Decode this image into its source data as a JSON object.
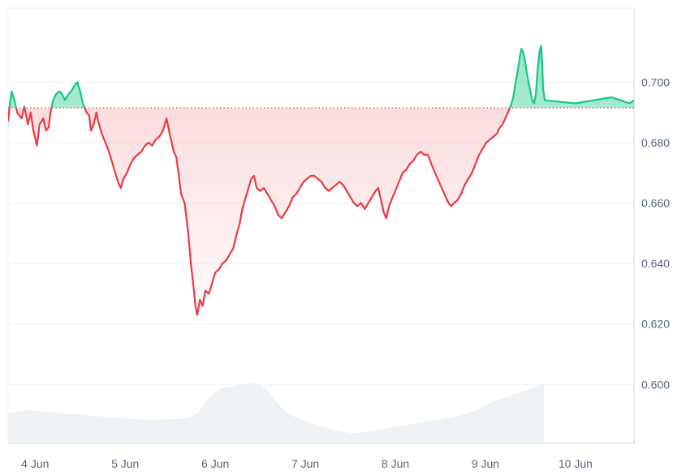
{
  "chart_data": {
    "type": "area",
    "title": "",
    "xlabel": "",
    "ylabel": "",
    "reference_line": 0.6915,
    "ylim": [
      0.5805,
      0.7245
    ],
    "xlim": [
      3.7,
      10.65
    ],
    "grid": true,
    "y_axis_position": "right",
    "colors": {
      "above": "#16c784",
      "below": "#ea3943",
      "above_fill": "#16c784",
      "below_fill": "#ea3943",
      "reference": "#ea3943",
      "volume": "#eff2f5",
      "grid": "#eff2f5",
      "tick_text": "#58667e"
    },
    "y_ticks": [
      {
        "value": 0.6,
        "label": "0.600"
      },
      {
        "value": 0.62,
        "label": "0.620"
      },
      {
        "value": 0.64,
        "label": "0.640"
      },
      {
        "value": 0.66,
        "label": "0.660"
      },
      {
        "value": 0.68,
        "label": "0.680"
      },
      {
        "value": 0.7,
        "label": "0.700"
      }
    ],
    "x_ticks": [
      {
        "value": 4,
        "label": "4 Jun"
      },
      {
        "value": 5,
        "label": "5 Jun"
      },
      {
        "value": 6,
        "label": "6 Jun"
      },
      {
        "value": 7,
        "label": "7 Jun"
      },
      {
        "value": 8,
        "label": "8 Jun"
      },
      {
        "value": 9,
        "label": "9 Jun"
      },
      {
        "value": 10,
        "label": "10 Jun"
      }
    ],
    "price": [
      [
        3.7,
        0.687
      ],
      [
        3.72,
        0.693
      ],
      [
        3.74,
        0.697
      ],
      [
        3.77,
        0.694
      ],
      [
        3.8,
        0.69
      ],
      [
        3.85,
        0.688
      ],
      [
        3.88,
        0.692
      ],
      [
        3.92,
        0.686
      ],
      [
        3.95,
        0.69
      ],
      [
        3.98,
        0.684
      ],
      [
        4.02,
        0.679
      ],
      [
        4.05,
        0.686
      ],
      [
        4.09,
        0.688
      ],
      [
        4.12,
        0.684
      ],
      [
        4.15,
        0.685
      ],
      [
        4.17,
        0.69
      ],
      [
        4.2,
        0.694
      ],
      [
        4.23,
        0.696
      ],
      [
        4.27,
        0.697
      ],
      [
        4.3,
        0.696
      ],
      [
        4.33,
        0.694
      ],
      [
        4.37,
        0.696
      ],
      [
        4.4,
        0.697
      ],
      [
        4.44,
        0.699
      ],
      [
        4.47,
        0.7
      ],
      [
        4.5,
        0.697
      ],
      [
        4.53,
        0.693
      ],
      [
        4.57,
        0.69
      ],
      [
        4.6,
        0.689
      ],
      [
        4.62,
        0.684
      ],
      [
        4.65,
        0.686
      ],
      [
        4.68,
        0.69
      ],
      [
        4.7,
        0.687
      ],
      [
        4.74,
        0.683
      ],
      [
        4.78,
        0.68
      ],
      [
        4.82,
        0.677
      ],
      [
        4.86,
        0.673
      ],
      [
        4.89,
        0.67
      ],
      [
        4.92,
        0.667
      ],
      [
        4.95,
        0.665
      ],
      [
        4.98,
        0.668
      ],
      [
        5.02,
        0.67
      ],
      [
        5.06,
        0.673
      ],
      [
        5.1,
        0.675
      ],
      [
        5.14,
        0.676
      ],
      [
        5.18,
        0.677
      ],
      [
        5.22,
        0.679
      ],
      [
        5.26,
        0.68
      ],
      [
        5.3,
        0.679
      ],
      [
        5.34,
        0.681
      ],
      [
        5.38,
        0.682
      ],
      [
        5.42,
        0.684
      ],
      [
        5.46,
        0.688
      ],
      [
        5.5,
        0.682
      ],
      [
        5.54,
        0.677
      ],
      [
        5.57,
        0.675
      ],
      [
        5.6,
        0.668
      ],
      [
        5.62,
        0.663
      ],
      [
        5.66,
        0.66
      ],
      [
        5.7,
        0.65
      ],
      [
        5.73,
        0.64
      ],
      [
        5.76,
        0.632
      ],
      [
        5.78,
        0.626
      ],
      [
        5.8,
        0.623
      ],
      [
        5.83,
        0.628
      ],
      [
        5.86,
        0.626
      ],
      [
        5.89,
        0.631
      ],
      [
        5.93,
        0.63
      ],
      [
        5.97,
        0.634
      ],
      [
        6.0,
        0.637
      ],
      [
        6.04,
        0.638
      ],
      [
        6.08,
        0.64
      ],
      [
        6.12,
        0.641
      ],
      [
        6.16,
        0.643
      ],
      [
        6.2,
        0.645
      ],
      [
        6.24,
        0.65
      ],
      [
        6.27,
        0.653
      ],
      [
        6.3,
        0.658
      ],
      [
        6.34,
        0.662
      ],
      [
        6.37,
        0.665
      ],
      [
        6.4,
        0.668
      ],
      [
        6.43,
        0.669
      ],
      [
        6.46,
        0.665
      ],
      [
        6.5,
        0.664
      ],
      [
        6.54,
        0.665
      ],
      [
        6.58,
        0.663
      ],
      [
        6.62,
        0.661
      ],
      [
        6.66,
        0.659
      ],
      [
        6.7,
        0.656
      ],
      [
        6.74,
        0.655
      ],
      [
        6.78,
        0.657
      ],
      [
        6.82,
        0.659
      ],
      [
        6.86,
        0.662
      ],
      [
        6.9,
        0.663
      ],
      [
        6.94,
        0.665
      ],
      [
        6.98,
        0.667
      ],
      [
        7.02,
        0.668
      ],
      [
        7.06,
        0.669
      ],
      [
        7.1,
        0.669
      ],
      [
        7.14,
        0.668
      ],
      [
        7.18,
        0.667
      ],
      [
        7.22,
        0.665
      ],
      [
        7.26,
        0.664
      ],
      [
        7.3,
        0.665
      ],
      [
        7.34,
        0.666
      ],
      [
        7.38,
        0.667
      ],
      [
        7.42,
        0.666
      ],
      [
        7.46,
        0.664
      ],
      [
        7.5,
        0.662
      ],
      [
        7.54,
        0.66
      ],
      [
        7.58,
        0.659
      ],
      [
        7.62,
        0.66
      ],
      [
        7.66,
        0.658
      ],
      [
        7.7,
        0.66
      ],
      [
        7.74,
        0.662
      ],
      [
        7.78,
        0.664
      ],
      [
        7.81,
        0.665
      ],
      [
        7.84,
        0.661
      ],
      [
        7.87,
        0.657
      ],
      [
        7.9,
        0.655
      ],
      [
        7.93,
        0.659
      ],
      [
        7.97,
        0.662
      ],
      [
        8.0,
        0.664
      ],
      [
        8.04,
        0.667
      ],
      [
        8.08,
        0.67
      ],
      [
        8.12,
        0.671
      ],
      [
        8.16,
        0.673
      ],
      [
        8.2,
        0.674
      ],
      [
        8.24,
        0.676
      ],
      [
        8.28,
        0.677
      ],
      [
        8.32,
        0.676
      ],
      [
        8.36,
        0.676
      ],
      [
        8.4,
        0.673
      ],
      [
        8.44,
        0.67
      ],
      [
        8.47,
        0.668
      ],
      [
        8.5,
        0.666
      ],
      [
        8.53,
        0.664
      ],
      [
        8.56,
        0.662
      ],
      [
        8.59,
        0.66
      ],
      [
        8.62,
        0.659
      ],
      [
        8.65,
        0.66
      ],
      [
        8.69,
        0.661
      ],
      [
        8.73,
        0.663
      ],
      [
        8.77,
        0.666
      ],
      [
        8.81,
        0.668
      ],
      [
        8.85,
        0.67
      ],
      [
        8.89,
        0.673
      ],
      [
        8.93,
        0.676
      ],
      [
        8.97,
        0.678
      ],
      [
        9.01,
        0.68
      ],
      [
        9.05,
        0.681
      ],
      [
        9.09,
        0.682
      ],
      [
        9.13,
        0.683
      ],
      [
        9.16,
        0.685
      ],
      [
        9.19,
        0.686
      ],
      [
        9.22,
        0.688
      ],
      [
        9.25,
        0.69
      ],
      [
        9.28,
        0.692
      ],
      [
        9.31,
        0.695
      ],
      [
        9.33,
        0.699
      ],
      [
        9.36,
        0.704
      ],
      [
        9.38,
        0.708
      ],
      [
        9.4,
        0.711
      ],
      [
        9.42,
        0.71
      ],
      [
        9.44,
        0.707
      ],
      [
        9.46,
        0.703
      ],
      [
        9.48,
        0.7
      ],
      [
        9.5,
        0.697
      ],
      [
        9.52,
        0.694
      ],
      [
        9.54,
        0.693
      ],
      [
        9.56,
        0.696
      ],
      [
        9.58,
        0.704
      ],
      [
        9.6,
        0.71
      ],
      [
        9.62,
        0.712
      ],
      [
        9.63,
        0.707
      ],
      [
        9.64,
        0.698
      ],
      [
        9.66,
        0.694
      ],
      [
        10.0,
        0.693
      ],
      [
        10.2,
        0.694
      ],
      [
        10.4,
        0.695
      ],
      [
        10.6,
        0.693
      ],
      [
        10.65,
        0.694
      ]
    ],
    "volume": [
      [
        3.7,
        0.08
      ],
      [
        3.9,
        0.081
      ],
      [
        4.1,
        0.0805
      ],
      [
        4.3,
        0.08
      ],
      [
        4.5,
        0.0795
      ],
      [
        4.7,
        0.079
      ],
      [
        4.9,
        0.0785
      ],
      [
        5.1,
        0.078
      ],
      [
        5.3,
        0.0778
      ],
      [
        5.5,
        0.078
      ],
      [
        5.7,
        0.0783
      ],
      [
        5.8,
        0.08
      ],
      [
        5.9,
        0.084
      ],
      [
        6.0,
        0.087
      ],
      [
        6.1,
        0.0885
      ],
      [
        6.2,
        0.089
      ],
      [
        6.3,
        0.0895
      ],
      [
        6.4,
        0.09
      ],
      [
        6.5,
        0.0895
      ],
      [
        6.6,
        0.087
      ],
      [
        6.7,
        0.083
      ],
      [
        6.8,
        0.08
      ],
      [
        6.9,
        0.0785
      ],
      [
        7.0,
        0.0775
      ],
      [
        7.1,
        0.0765
      ],
      [
        7.2,
        0.0755
      ],
      [
        7.3,
        0.0745
      ],
      [
        7.4,
        0.074
      ],
      [
        7.5,
        0.0735
      ],
      [
        7.6,
        0.0735
      ],
      [
        7.7,
        0.074
      ],
      [
        7.8,
        0.0745
      ],
      [
        7.9,
        0.075
      ],
      [
        8.0,
        0.0755
      ],
      [
        8.1,
        0.076
      ],
      [
        8.2,
        0.0765
      ],
      [
        8.3,
        0.077
      ],
      [
        8.4,
        0.0775
      ],
      [
        8.5,
        0.078
      ],
      [
        8.6,
        0.0785
      ],
      [
        8.7,
        0.079
      ],
      [
        8.8,
        0.08
      ],
      [
        8.9,
        0.081
      ],
      [
        9.0,
        0.0825
      ],
      [
        9.1,
        0.084
      ],
      [
        9.2,
        0.085
      ],
      [
        9.3,
        0.086
      ],
      [
        9.4,
        0.087
      ],
      [
        9.5,
        0.088
      ],
      [
        9.6,
        0.089
      ],
      [
        9.65,
        0.09
      ]
    ]
  }
}
